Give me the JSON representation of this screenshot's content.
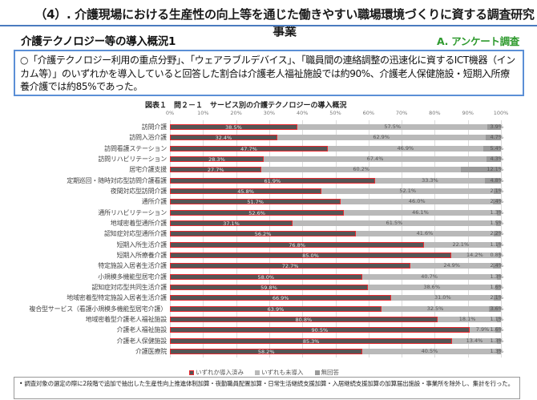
{
  "header": {
    "title": "（4）. 介護現場における生産性の向上等を通じた働きやすい職場環境づくりに資する調査研究事業",
    "section_title": "介護テクノロジー等の導入概況1",
    "section_tag": "A. アンケート調査"
  },
  "summary": {
    "text": "○「介護テクノロジー利用の重点分野」、「ウェアラブルデバイス」、「職員間の連絡調整の迅速化に資するICT機器（インカム等）」のいずれかを導入していると回答した割合は介護老人福祉施設では約90%、介護老人保健施設・短期入所療養介護では約85%であった。"
  },
  "note": {
    "text": "• 調査対象の選定の際に2段階で追加で抽出した生産性向上推進体制加算・夜勤職員配置加算・日常生活継続支援加算・入居継続支援加算の加算届出施設・事業所を除外し、集計を行った。"
  },
  "colors": {
    "introduced": "#555555",
    "introduced_border": "#e8292f",
    "not_introduced": "#b9b9b9",
    "no_answer": "#9a9a9a",
    "accent_blue": "#4a7bbf",
    "tag_green": "#2e9a2e"
  },
  "chart_data": {
    "type": "bar",
    "stacked": true,
    "orientation": "horizontal",
    "title": "図表１　問２－１　サービス別の介護テクノロジーの導入概況",
    "xlabel": "",
    "ylabel": "",
    "xlim": [
      0,
      100
    ],
    "x_ticks": [
      "0%",
      "10%",
      "20%",
      "30%",
      "40%",
      "50%",
      "60%",
      "70%",
      "80%",
      "90%",
      "100%"
    ],
    "grid": true,
    "legend_position": "bottom",
    "categories": [
      "訪問介護",
      "訪問入浴介護",
      "訪問看護ステーション",
      "訪問リハビリテーション",
      "居宅介護支援",
      "定期巡回・随時対応型訪問介護看護",
      "夜間対応型訪問介護",
      "通所介護",
      "通所リハビリテーション",
      "地域密着型通所介護",
      "認知症対応型通所介護",
      "短期入所生活介護",
      "短期入所療養介護",
      "特定施設入居者生活介護",
      "小規模多機能型居宅介護",
      "認知症対応型共同生活介護",
      "地域密着型特定施設入居者生活介護",
      "複合型サービス（看護小規模多機能型居宅介護）",
      "地域密着型介護老人福祉施設",
      "介護老人福祉施設",
      "介護老人保健施設",
      "介護医療院"
    ],
    "series": [
      {
        "name": "いずれか導入済み",
        "values": [
          38.5,
          32.4,
          47.7,
          28.3,
          27.7,
          61.9,
          45.8,
          51.7,
          52.6,
          37.1,
          56.2,
          76.8,
          85.0,
          72.7,
          58.0,
          59.8,
          66.9,
          63.9,
          80.8,
          90.5,
          85.3,
          58.2
        ]
      },
      {
        "name": "いずれも未導入",
        "values": [
          57.5,
          62.9,
          46.9,
          67.4,
          60.2,
          33.3,
          52.1,
          46.0,
          46.1,
          61.5,
          41.6,
          22.1,
          14.2,
          24.9,
          40.7,
          38.6,
          31.0,
          32.5,
          18.1,
          7.9,
          13.4,
          40.5
        ]
      },
      {
        "name": "無回答",
        "values": [
          3.9,
          4.7,
          5.4,
          4.3,
          12.1,
          4.8,
          2.1,
          2.4,
          1.3,
          1.5,
          2.2,
          1.1,
          0.8,
          2.4,
          1.3,
          1.6,
          2.1,
          3.6,
          1.1,
          1.6,
          1.3,
          1.3
        ]
      }
    ],
    "legend": [
      "いずれか導入済み",
      "いずれも未導入",
      "無回答"
    ]
  }
}
